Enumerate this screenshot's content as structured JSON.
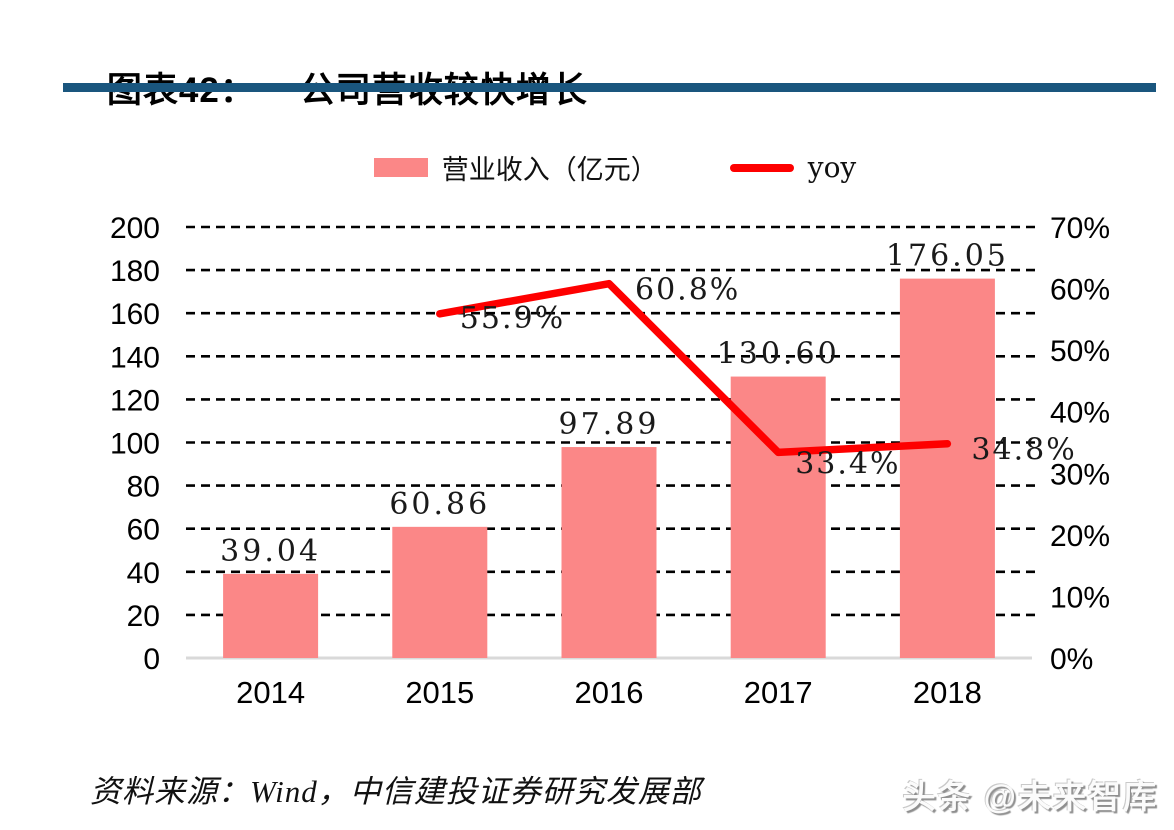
{
  "header": {
    "title_prefix": "图表42：",
    "title_text": "公司营收较快增长",
    "rule_color": "#1A567E"
  },
  "legend": {
    "items": [
      {
        "label": "营业收入（亿元）",
        "swatch": "bar-swatch",
        "color": "#FB8787"
      },
      {
        "label": "yoy",
        "swatch": "line-swatch",
        "color": "#FE0000"
      }
    ]
  },
  "chart_data": {
    "type": "bar+line combo",
    "categories": [
      "2014",
      "2015",
      "2016",
      "2017",
      "2018"
    ],
    "series": [
      {
        "name": "营业收入（亿元）",
        "type": "bar",
        "axis": "left",
        "color": "#FB8787",
        "values": [
          39.04,
          60.86,
          97.89,
          130.6,
          176.05
        ],
        "labels": [
          "39.04",
          "60.86",
          "97.89",
          "130.60",
          "176.05"
        ]
      },
      {
        "name": "yoy",
        "type": "line",
        "axis": "right",
        "color": "#FE0000",
        "values": [
          null,
          55.9,
          60.8,
          33.4,
          34.8
        ],
        "labels": [
          null,
          "55.9%",
          "60.8%",
          "33.4%",
          "34.8%"
        ]
      }
    ],
    "left_axis": {
      "min": 0,
      "max": 200,
      "step": 20,
      "ticks": [
        "0",
        "20",
        "40",
        "60",
        "80",
        "100",
        "120",
        "140",
        "160",
        "180",
        "200"
      ]
    },
    "right_axis": {
      "min": 0,
      "max": 70,
      "step": 10,
      "ticks": [
        "0%",
        "10%",
        "20%",
        "30%",
        "40%",
        "50%",
        "60%",
        "70%"
      ]
    },
    "grid": "horizontal dashed black lines, solid light-gray zero baseline",
    "legend_position": "top center",
    "gridline_color": "#000000",
    "baseline_color": "#D9D9D9"
  },
  "footer": {
    "source": "资料来源：Wind，中信建投证券研究发展部",
    "watermark": "头条 @未来智库"
  }
}
